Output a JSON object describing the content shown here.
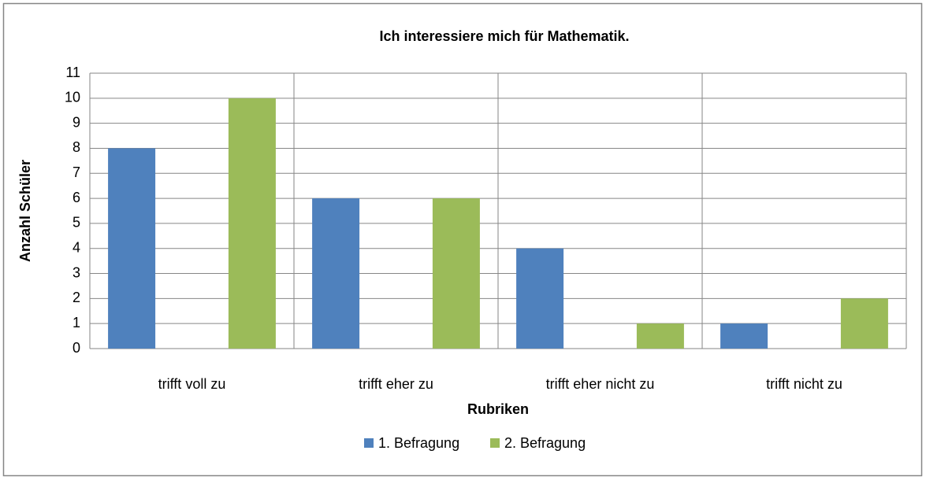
{
  "chart_data": {
    "type": "bar",
    "title": "Ich interessiere mich für Mathematik.",
    "ylabel": "Anzahl Schüler",
    "xlabel": "Rubriken",
    "categories": [
      "trifft voll zu",
      "trifft eher zu",
      "trifft eher nicht zu",
      "trifft nicht zu"
    ],
    "series": [
      {
        "name": "1. Befragung",
        "color": "#4f81bd",
        "values": [
          8,
          6,
          4,
          1
        ]
      },
      {
        "name": "2. Befragung",
        "color": "#9bbb59",
        "values": [
          10,
          6,
          1,
          2
        ]
      }
    ],
    "ylim": [
      0,
      11
    ],
    "yticks": [
      0,
      1,
      2,
      3,
      4,
      5,
      6,
      7,
      8,
      9,
      10,
      11
    ],
    "grid": true,
    "legend": "bottom"
  }
}
